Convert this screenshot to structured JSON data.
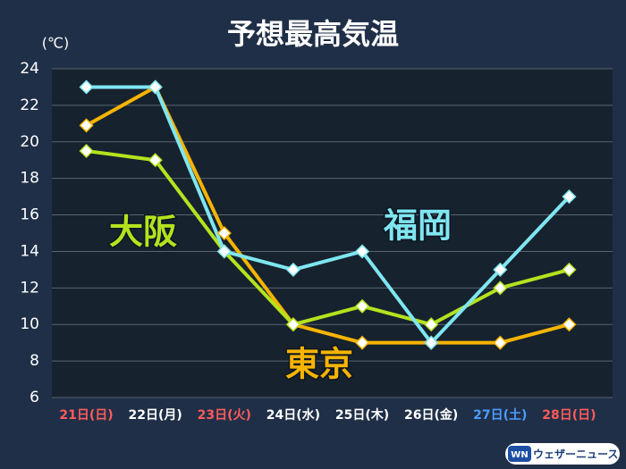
{
  "chart_data": {
    "type": "line",
    "title": "予想最高気温",
    "y_label": "(℃)",
    "categories": [
      "21日(日)",
      "22日(月)",
      "23日(火)",
      "24日(水)",
      "25日(木)",
      "26日(金)",
      "27日(土)",
      "28日(日)"
    ],
    "category_colors": [
      "#ff5b5b",
      "#ffffff",
      "#ff5b5b",
      "#ffffff",
      "#ffffff",
      "#ffffff",
      "#4d9dff",
      "#ff5b5b"
    ],
    "series": [
      {
        "name": "東京",
        "color": "#f5b400",
        "values": [
          20.9,
          23,
          15,
          10,
          9,
          9,
          9,
          10
        ]
      },
      {
        "name": "大阪",
        "color": "#b4e31e",
        "values": [
          19.5,
          19,
          14,
          10,
          11,
          10,
          12,
          13
        ]
      },
      {
        "name": "福岡",
        "color": "#7fe6f0",
        "values": [
          23,
          23,
          14,
          13,
          14,
          9,
          13,
          17
        ]
      }
    ],
    "ylim": [
      6,
      24
    ],
    "yticks": [
      6,
      8,
      10,
      12,
      14,
      16,
      18,
      20,
      22,
      24
    ],
    "grid": true,
    "source_logo": "WN",
    "source": "ウェザーニュース"
  }
}
